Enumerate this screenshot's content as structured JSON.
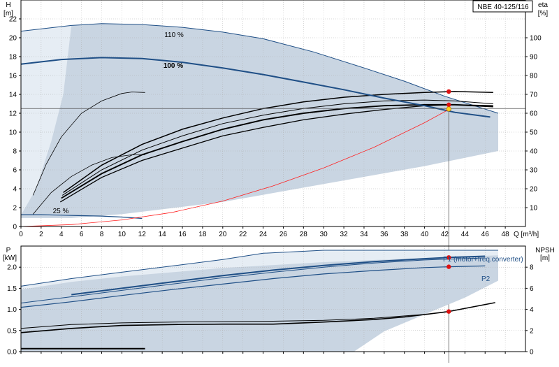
{
  "model_label": "NBE 40-125/116",
  "colors": {
    "band_fill": "#c9d5e2",
    "band_light": "#e6edf4",
    "band_edge": "#1f4f86",
    "curve_blue": "#1f4f86",
    "curve_black": "#000000",
    "system_curve": "#ff2020",
    "op_point": "#e01010",
    "op_point_yellow": "#ffd21a",
    "grid": "#b0b0b0",
    "axis": "#000000"
  },
  "chart_data": [
    {
      "type": "line",
      "id": "head",
      "y_axis_label": "H",
      "y_axis_unit": "[m]",
      "y2_axis_label": "eta",
      "y2_axis_unit": "[%]",
      "x_axis_label": "Q [m³/h]",
      "xlim": [
        0,
        50
      ],
      "ylim": [
        0,
        24
      ],
      "y2lim": [
        0,
        120
      ],
      "xticks": [
        0,
        2,
        4,
        6,
        8,
        10,
        12,
        14,
        16,
        18,
        20,
        22,
        24,
        26,
        28,
        30,
        32,
        34,
        36,
        38,
        40,
        42,
        44,
        46,
        48
      ],
      "yticks": [
        0,
        2,
        4,
        6,
        8,
        10,
        12,
        14,
        16,
        18,
        20,
        22
      ],
      "y2ticks": [
        10,
        20,
        30,
        40,
        50,
        60,
        70,
        80,
        90,
        100
      ],
      "grid": true,
      "band_outer": [
        [
          0,
          20.7
        ],
        [
          5,
          21.3
        ],
        [
          8,
          21.5
        ],
        [
          12,
          21.4
        ],
        [
          16,
          21.1
        ],
        [
          20,
          20.6
        ],
        [
          24,
          19.9
        ],
        [
          29,
          18.5
        ],
        [
          34,
          16.8
        ],
        [
          38,
          15.4
        ],
        [
          42,
          13.8
        ],
        [
          47.3,
          12
        ],
        [
          47.3,
          8
        ],
        [
          40,
          6.4
        ],
        [
          30,
          4.5
        ],
        [
          20,
          2.6
        ],
        [
          10,
          1.3
        ],
        [
          5,
          0.9
        ],
        [
          0,
          0.9
        ]
      ],
      "band_light_region": [
        [
          0,
          20.7
        ],
        [
          5,
          21.3
        ],
        [
          4.2,
          14
        ],
        [
          3,
          9
        ],
        [
          1.5,
          4
        ],
        [
          0,
          1.2
        ]
      ],
      "speed_curves": [
        {
          "label": "110 %",
          "points": [
            [
              0,
              20.7
            ],
            [
              5,
              21.3
            ],
            [
              8,
              21.5
            ],
            [
              12,
              21.4
            ],
            [
              16,
              21.1
            ],
            [
              20,
              20.6
            ],
            [
              24,
              19.9
            ],
            [
              29,
              18.5
            ],
            [
              34,
              16.8
            ],
            [
              38,
              15.4
            ],
            [
              42,
              13.8
            ],
            [
              47.3,
              12.2
            ]
          ]
        },
        {
          "label": "100 %",
          "points": [
            [
              0,
              17.2
            ],
            [
              4,
              17.7
            ],
            [
              8,
              17.9
            ],
            [
              12,
              17.8
            ],
            [
              16,
              17.4
            ],
            [
              20,
              16.8
            ],
            [
              24,
              16.1
            ],
            [
              28,
              15.3
            ],
            [
              32,
              14.5
            ],
            [
              36,
              13.6
            ],
            [
              40,
              12.8
            ],
            [
              43,
              12.1
            ],
            [
              46.5,
              11.6
            ]
          ]
        },
        {
          "label": "25 %",
          "points": [
            [
              0,
              1.25
            ],
            [
              2,
              1.25
            ],
            [
              4,
              1.2
            ],
            [
              6,
              1.15
            ],
            [
              8,
              1.1
            ],
            [
              10,
              1
            ],
            [
              12,
              0.85
            ]
          ]
        }
      ],
      "efficiency_curves": [
        {
          "series": "eta_a",
          "points": [
            [
              1.2,
              3.3
            ],
            [
              2.5,
              6.6
            ],
            [
              4,
              9.5
            ],
            [
              6,
              12
            ],
            [
              8,
              13.3
            ],
            [
              10,
              14.1
            ],
            [
              11,
              14.25
            ],
            [
              12.3,
              14.2
            ]
          ]
        },
        {
          "series": "eta_b",
          "points": [
            [
              1.2,
              1.3
            ],
            [
              3,
              3.6
            ],
            [
              5,
              5.3
            ],
            [
              7,
              6.5
            ],
            [
              9,
              7.3
            ],
            [
              11,
              7.6
            ],
            [
              12.3,
              7.6
            ]
          ]
        },
        {
          "series": "eta_c",
          "points": [
            [
              3.9,
              2.6
            ],
            [
              8,
              5.2
            ],
            [
              12,
              7
            ],
            [
              16,
              8.3
            ],
            [
              20,
              9.6
            ],
            [
              24,
              10.5
            ],
            [
              28,
              11.3
            ],
            [
              32,
              11.9
            ],
            [
              36,
              12.4
            ],
            [
              40,
              12.8
            ],
            [
              43,
              12.9
            ],
            [
              46.8,
              12.8
            ]
          ]
        },
        {
          "series": "eta_d",
          "points": [
            [
              4,
              3
            ],
            [
              8,
              5.6
            ],
            [
              12,
              7.6
            ],
            [
              16,
              9
            ],
            [
              20,
              10.3
            ],
            [
              24,
              11.3
            ],
            [
              28,
              12
            ],
            [
              32,
              12.5
            ],
            [
              36,
              12.8
            ],
            [
              40,
              12.9
            ],
            [
              43,
              12.9
            ],
            [
              46.8,
              12.7
            ]
          ]
        },
        {
          "series": "eta_e",
          "points": [
            [
              4.1,
              3.3
            ],
            [
              8,
              6
            ],
            [
              12,
              8.1
            ],
            [
              16,
              9.6
            ],
            [
              20,
              10.9
            ],
            [
              24,
              11.8
            ],
            [
              28,
              12.5
            ],
            [
              32,
              13
            ],
            [
              36,
              13.3
            ],
            [
              40,
              13.4
            ],
            [
              43,
              13.3
            ],
            [
              46.8,
              13
            ]
          ]
        },
        {
          "series": "eta_f",
          "points": [
            [
              4.2,
              3.6
            ],
            [
              8,
              6.5
            ],
            [
              12,
              8.7
            ],
            [
              16,
              10.3
            ],
            [
              20,
              11.5
            ],
            [
              24,
              12.5
            ],
            [
              28,
              13.2
            ],
            [
              32,
              13.7
            ],
            [
              36,
              14
            ],
            [
              40,
              14.2
            ],
            [
              43,
              14.3
            ],
            [
              46.8,
              14.2
            ]
          ]
        }
      ],
      "system_curve": [
        [
          0,
          0
        ],
        [
          5,
          0.2
        ],
        [
          10,
          0.7
        ],
        [
          15,
          1.5
        ],
        [
          20,
          2.7
        ],
        [
          25,
          4.3
        ],
        [
          30,
          6.2
        ],
        [
          35,
          8.4
        ],
        [
          40,
          11
        ],
        [
          42.4,
          12.4
        ]
      ],
      "reference_line": {
        "h": 12.5,
        "q": 42.4
      },
      "operating_points": [
        {
          "q": 42.4,
          "y": 14.3,
          "color": "op_point"
        },
        {
          "q": 42.4,
          "y": 12.9,
          "color": "op_point"
        },
        {
          "q": 42.4,
          "y": 12.45,
          "color": "op_point_yellow"
        }
      ]
    },
    {
      "type": "line",
      "id": "power_npsh",
      "y_axis_label": "P",
      "y_axis_unit": "[kW]",
      "y2_axis_label": "NPSH",
      "y2_axis_unit": "[m]",
      "xlim": [
        0,
        50
      ],
      "ylim": [
        0,
        2.5
      ],
      "y2lim": [
        0,
        10
      ],
      "yticks": [
        0,
        0.5,
        1.0,
        1.5,
        2.0
      ],
      "ytick_labels": [
        "0.0",
        "0.5",
        "1.0",
        "1.5",
        "2.0"
      ],
      "y2ticks": [
        0,
        2,
        4,
        6,
        8
      ],
      "grid": true,
      "band_outer": [
        [
          0,
          1.55
        ],
        [
          5,
          1.73
        ],
        [
          10,
          1.88
        ],
        [
          15,
          2.03
        ],
        [
          20,
          2.18
        ],
        [
          24,
          2.33
        ],
        [
          30,
          2.4
        ],
        [
          40,
          2.4
        ],
        [
          47.3,
          2.4
        ],
        [
          47.3,
          1.68
        ],
        [
          44,
          1.28
        ],
        [
          40,
          0.88
        ],
        [
          36,
          0.48
        ],
        [
          33,
          0
        ],
        [
          0,
          0
        ]
      ],
      "band_light_region": [
        [
          0,
          1.55
        ],
        [
          5,
          1.73
        ],
        [
          10,
          1.88
        ],
        [
          15,
          2.03
        ],
        [
          20,
          2.18
        ],
        [
          24,
          2.33
        ],
        [
          30,
          2.4
        ],
        [
          40,
          2.4
        ],
        [
          47.3,
          2.4
        ],
        [
          47.3,
          2.28
        ],
        [
          40,
          2.22
        ],
        [
          30,
          2.12
        ],
        [
          20,
          1.98
        ],
        [
          10,
          1.78
        ],
        [
          5,
          1.65
        ],
        [
          0,
          1.47
        ]
      ],
      "curves": [
        {
          "name": "P1 (motor+freq.converter)",
          "color": "curve_blue",
          "width": 2,
          "points": [
            [
              5,
              1.35
            ],
            [
              10,
              1.5
            ],
            [
              15,
              1.65
            ],
            [
              20,
              1.8
            ],
            [
              25,
              1.93
            ],
            [
              30,
              2.04
            ],
            [
              35,
              2.13
            ],
            [
              40,
              2.2
            ],
            [
              42.4,
              2.23
            ],
            [
              46,
              2.26
            ]
          ]
        },
        {
          "name": "P2",
          "color": "curve_blue",
          "width": 1.2,
          "points": [
            [
              0,
              1.05
            ],
            [
              5,
              1.18
            ],
            [
              10,
              1.33
            ],
            [
              15,
              1.47
            ],
            [
              20,
              1.6
            ],
            [
              25,
              1.73
            ],
            [
              30,
              1.84
            ],
            [
              35,
              1.92
            ],
            [
              40,
              1.99
            ],
            [
              42.4,
              2.01
            ],
            [
              46,
              2.03
            ]
          ]
        },
        {
          "name": "",
          "color": "curve_blue",
          "width": 1,
          "points": [
            [
              0,
              1.15
            ],
            [
              5,
              1.3
            ],
            [
              10,
              1.45
            ],
            [
              15,
              1.6
            ],
            [
              20,
              1.75
            ],
            [
              25,
              1.88
            ],
            [
              30,
              2
            ],
            [
              35,
              2.1
            ],
            [
              40,
              2.17
            ],
            [
              46,
              2.22
            ]
          ]
        },
        {
          "name": "",
          "color": "curve_black",
          "width": 1.6,
          "points": [
            [
              0,
              0.45
            ],
            [
              5,
              0.55
            ],
            [
              10,
              0.62
            ],
            [
              15,
              0.64
            ],
            [
              20,
              0.65
            ],
            [
              25,
              0.65
            ],
            [
              30,
              0.7
            ],
            [
              35,
              0.76
            ],
            [
              38,
              0.82
            ],
            [
              42.4,
              0.95
            ],
            [
              47,
              1.16
            ]
          ]
        },
        {
          "name": "",
          "color": "curve_black",
          "width": 1,
          "points": [
            [
              0,
              0.55
            ],
            [
              5,
              0.64
            ],
            [
              10,
              0.68
            ],
            [
              15,
              0.7
            ],
            [
              20,
              0.71
            ],
            [
              25,
              0.72
            ],
            [
              30,
              0.74
            ],
            [
              35,
              0.79
            ],
            [
              40,
              0.88
            ]
          ]
        },
        {
          "name": "",
          "color": "curve_black",
          "width": 2,
          "points": [
            [
              0,
              0.07
            ],
            [
              12.3,
              0.07
            ]
          ]
        }
      ],
      "operating_points": [
        {
          "q": 42.4,
          "y": 2.23,
          "color": "op_point"
        },
        {
          "q": 42.4,
          "y": 2.01,
          "color": "op_point"
        },
        {
          "q": 42.4,
          "y": 0.95,
          "color": "op_point"
        }
      ],
      "legend": [
        {
          "text": "P1 (motor+freq.converter)",
          "q": 42.4,
          "y": 2.23
        },
        {
          "text": "P2",
          "q": 46,
          "y": 2.03
        }
      ]
    }
  ]
}
